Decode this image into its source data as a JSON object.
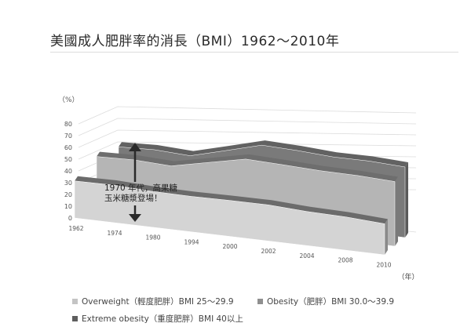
{
  "chart_data": {
    "type": "area",
    "subtype": "3d-stacked-area",
    "title": "美國成人肥胖率的消長（BMI）1962～2010年",
    "ylabel": "（%）",
    "xlabel": "（年）",
    "ylim": [
      0,
      80
    ],
    "yticks": [
      "0",
      "10",
      "20",
      "30",
      "40",
      "50",
      "60",
      "70",
      "80"
    ],
    "categories": [
      "1962",
      "1974",
      "1980",
      "1994",
      "2000",
      "2002",
      "2004",
      "2008",
      "2010"
    ],
    "series": [
      {
        "name": "Overweight（輕度肥胖）BMI 25～29.9",
        "color": "#d3d3d3",
        "values": [
          31.5,
          32.7,
          32.1,
          32.6,
          34.0,
          35.1,
          34.1,
          34.3,
          33.0
        ]
      },
      {
        "name": "Obesity（肥胖）BMI 30.0～39.9",
        "color": "#b3b3b3",
        "values": [
          13.4,
          14.5,
          15.0,
          23.2,
          30.9,
          30.6,
          32.2,
          33.8,
          35.7
        ]
      },
      {
        "name": "Extreme obesity（重度肥胖）BMI 40以上",
        "color": "#767676",
        "values": [
          0.9,
          1.3,
          1.4,
          3.0,
          5.0,
          5.4,
          5.1,
          6.0,
          6.3
        ]
      }
    ],
    "annotation": {
      "line1": "1970 年代，高果糖",
      "line2": "玉米糖漿登場！"
    },
    "legend_position": "bottom"
  }
}
